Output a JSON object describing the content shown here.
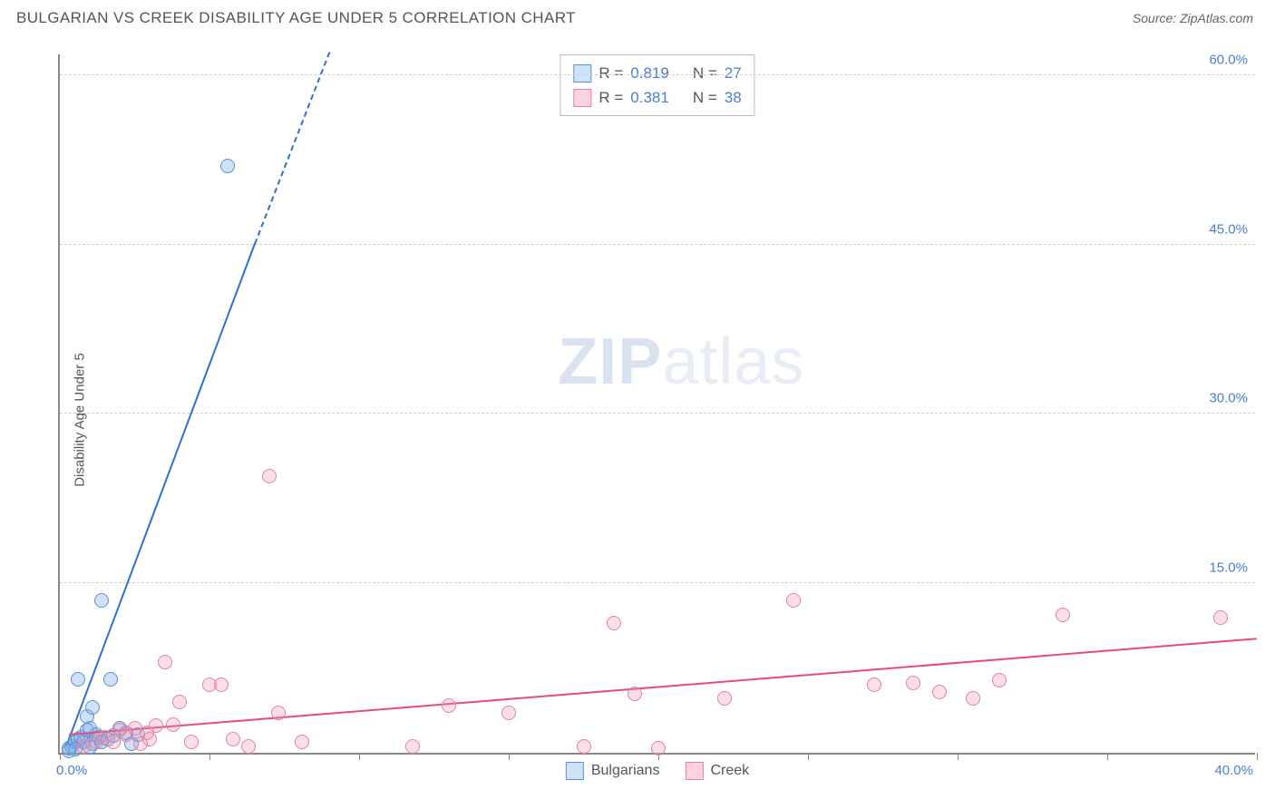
{
  "header": {
    "title": "BULGARIAN VS CREEK DISABILITY AGE UNDER 5 CORRELATION CHART",
    "source_label": "Source:",
    "source_name": "ZipAtlas.com"
  },
  "watermark": {
    "zip": "ZIP",
    "atlas": "atlas"
  },
  "chart": {
    "type": "scatter",
    "ylabel": "Disability Age Under 5",
    "xlim": [
      0,
      40
    ],
    "ylim": [
      0,
      62
    ],
    "xticks": [
      0,
      5,
      10,
      15,
      20,
      25,
      30,
      35,
      40
    ],
    "yticks": [
      15,
      30,
      45,
      60
    ],
    "ytick_labels": [
      "15.0%",
      "30.0%",
      "45.0%",
      "60.0%"
    ],
    "xtick_left_label": "0.0%",
    "xtick_right_label": "40.0%",
    "background_color": "#ffffff",
    "grid_color": "#d0d0d0",
    "axis_color": "#888888",
    "marker_radius": 8,
    "stats_legend": [
      {
        "swatch_fill": "#cfe3f8",
        "swatch_border": "#5b8fd6",
        "r_label": "R =",
        "r_val": "0.819",
        "n_label": "N =",
        "n_val": "27"
      },
      {
        "swatch_fill": "#f9d4de",
        "swatch_border": "#e77fa0",
        "r_label": "R =",
        "r_val": "0.381",
        "n_label": "N =",
        "n_val": "38"
      }
    ],
    "bottom_legend": [
      {
        "swatch_fill": "#cfe3f8",
        "swatch_border": "#5b8fd6",
        "label": "Bulgarians"
      },
      {
        "swatch_fill": "#f9d4de",
        "swatch_border": "#e77fa0",
        "label": "Creek"
      }
    ],
    "series": [
      {
        "name": "Bulgarians",
        "fill": "rgba(120,170,230,0.35)",
        "stroke": "#5b8fd6",
        "trend_color": "#2f6fd1",
        "trend_solid": {
          "x1": 0.2,
          "y1": 0.5,
          "x2": 6.5,
          "y2": 45
        },
        "trend_dash": {
          "x1": 6.5,
          "y1": 45,
          "x2": 9.0,
          "y2": 62
        },
        "points": [
          [
            0.3,
            0.4
          ],
          [
            0.4,
            0.6
          ],
          [
            0.5,
            1.0
          ],
          [
            0.6,
            1.2
          ],
          [
            0.7,
            1.4
          ],
          [
            0.8,
            1.0
          ],
          [
            0.9,
            2.0
          ],
          [
            1.0,
            2.2
          ],
          [
            1.1,
            0.8
          ],
          [
            1.2,
            1.6
          ],
          [
            1.3,
            1.4
          ],
          [
            1.4,
            1.0
          ],
          [
            1.6,
            1.2
          ],
          [
            1.8,
            1.5
          ],
          [
            0.6,
            6.5
          ],
          [
            1.4,
            13.5
          ],
          [
            1.7,
            6.5
          ],
          [
            2.0,
            2.2
          ],
          [
            2.2,
            1.8
          ],
          [
            2.4,
            0.8
          ],
          [
            2.6,
            1.6
          ],
          [
            0.9,
            3.2
          ],
          [
            1.1,
            4.0
          ],
          [
            5.6,
            52
          ],
          [
            1.0,
            0.5
          ],
          [
            0.5,
            0.3
          ],
          [
            0.3,
            0.2
          ]
        ]
      },
      {
        "name": "Creek",
        "fill": "rgba(240,150,180,0.30)",
        "stroke": "#e77fa0",
        "trend_color": "#e64b7b",
        "trend_solid": {
          "x1": 0.3,
          "y1": 1.5,
          "x2": 40,
          "y2": 10
        },
        "points": [
          [
            0.8,
            0.6
          ],
          [
            1.2,
            1.0
          ],
          [
            1.5,
            1.4
          ],
          [
            1.8,
            1.0
          ],
          [
            2.0,
            2.0
          ],
          [
            2.2,
            1.6
          ],
          [
            2.5,
            2.2
          ],
          [
            2.7,
            0.8
          ],
          [
            2.9,
            1.8
          ],
          [
            3.0,
            1.2
          ],
          [
            3.2,
            2.4
          ],
          [
            3.5,
            8.0
          ],
          [
            3.8,
            2.5
          ],
          [
            4.0,
            4.5
          ],
          [
            4.4,
            1.0
          ],
          [
            5.0,
            6.0
          ],
          [
            5.4,
            6.0
          ],
          [
            5.8,
            1.2
          ],
          [
            6.3,
            0.6
          ],
          [
            7.0,
            24.5
          ],
          [
            7.3,
            3.5
          ],
          [
            8.1,
            1.0
          ],
          [
            11.8,
            0.6
          ],
          [
            13.0,
            4.2
          ],
          [
            15.0,
            3.5
          ],
          [
            17.5,
            0.6
          ],
          [
            18.5,
            11.5
          ],
          [
            19.2,
            5.2
          ],
          [
            20.0,
            0.4
          ],
          [
            22.2,
            4.8
          ],
          [
            24.5,
            13.5
          ],
          [
            27.2,
            6.0
          ],
          [
            28.5,
            6.2
          ],
          [
            29.4,
            5.4
          ],
          [
            30.5,
            4.8
          ],
          [
            31.4,
            6.4
          ],
          [
            33.5,
            12.2
          ],
          [
            38.8,
            12.0
          ]
        ]
      }
    ]
  }
}
